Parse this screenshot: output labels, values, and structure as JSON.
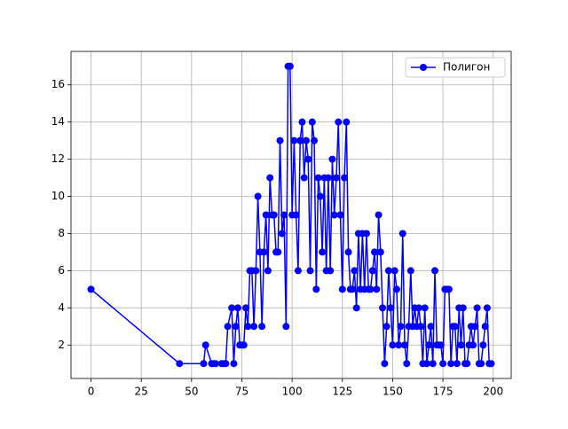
{
  "chart_data": {
    "type": "line",
    "x": [
      0,
      44,
      56,
      57,
      60,
      61,
      62,
      65,
      66,
      67,
      68,
      70,
      71,
      72,
      73,
      74,
      75,
      76,
      77,
      78,
      79,
      80,
      81,
      82,
      83,
      84,
      85,
      86,
      87,
      88,
      89,
      90,
      91,
      92,
      93,
      94,
      95,
      96,
      97,
      98,
      99,
      100,
      101,
      102,
      103,
      104,
      105,
      106,
      107,
      108,
      109,
      110,
      111,
      112,
      113,
      114,
      115,
      116,
      117,
      118,
      119,
      120,
      121,
      122,
      123,
      124,
      125,
      126,
      127,
      128,
      129,
      130,
      131,
      132,
      133,
      134,
      135,
      136,
      137,
      138,
      139,
      140,
      141,
      142,
      143,
      144,
      145,
      146,
      147,
      148,
      149,
      150,
      151,
      152,
      153,
      154,
      155,
      156,
      157,
      158,
      159,
      160,
      161,
      162,
      163,
      164,
      165,
      166,
      167,
      168,
      169,
      170,
      171,
      172,
      173,
      174,
      175,
      176,
      177,
      178,
      179,
      180,
      181,
      182,
      183,
      184,
      185,
      186,
      187,
      188,
      189,
      190,
      191,
      192,
      193,
      194,
      195,
      196,
      197,
      198,
      199
    ],
    "series": [
      {
        "name": "Полигон",
        "color": "#0000ff",
        "values": [
          5,
          1,
          1,
          2,
          1,
          1,
          1,
          1,
          1,
          1,
          3,
          4,
          1,
          3,
          4,
          2,
          2,
          2,
          4,
          3,
          6,
          6,
          3,
          6,
          10,
          7,
          3,
          7,
          9,
          6,
          11,
          9,
          9,
          7,
          7,
          13,
          8,
          9,
          3,
          17,
          17,
          9,
          13,
          9,
          6,
          13,
          14,
          11,
          13,
          12,
          6,
          14,
          13,
          5,
          11,
          10,
          7,
          11,
          6,
          11,
          6,
          12,
          9,
          11,
          14,
          9,
          5,
          11,
          14,
          7,
          5,
          5,
          6,
          4,
          8,
          5,
          8,
          5,
          8,
          5,
          5,
          6,
          7,
          5,
          9,
          7,
          4,
          1,
          3,
          6,
          4,
          2,
          6,
          5,
          2,
          3,
          8,
          2,
          1,
          3,
          6,
          3,
          4,
          3,
          4,
          3,
          1,
          4,
          1,
          2,
          3,
          1,
          6,
          2,
          2,
          2,
          1,
          5,
          5,
          5,
          1,
          3,
          3,
          1,
          4,
          2,
          4,
          1,
          1,
          2,
          3,
          2,
          3,
          4,
          1,
          1,
          2,
          3,
          4,
          1,
          1
        ]
      }
    ],
    "xlim": [
      -9.95,
      208.95
    ],
    "ylim": [
      0.2,
      17.8
    ],
    "xticks": [
      0,
      25,
      50,
      75,
      100,
      125,
      150,
      175,
      200
    ],
    "yticks": [
      2,
      4,
      6,
      8,
      10,
      12,
      14,
      16
    ],
    "grid": true,
    "legend": "upper right"
  }
}
